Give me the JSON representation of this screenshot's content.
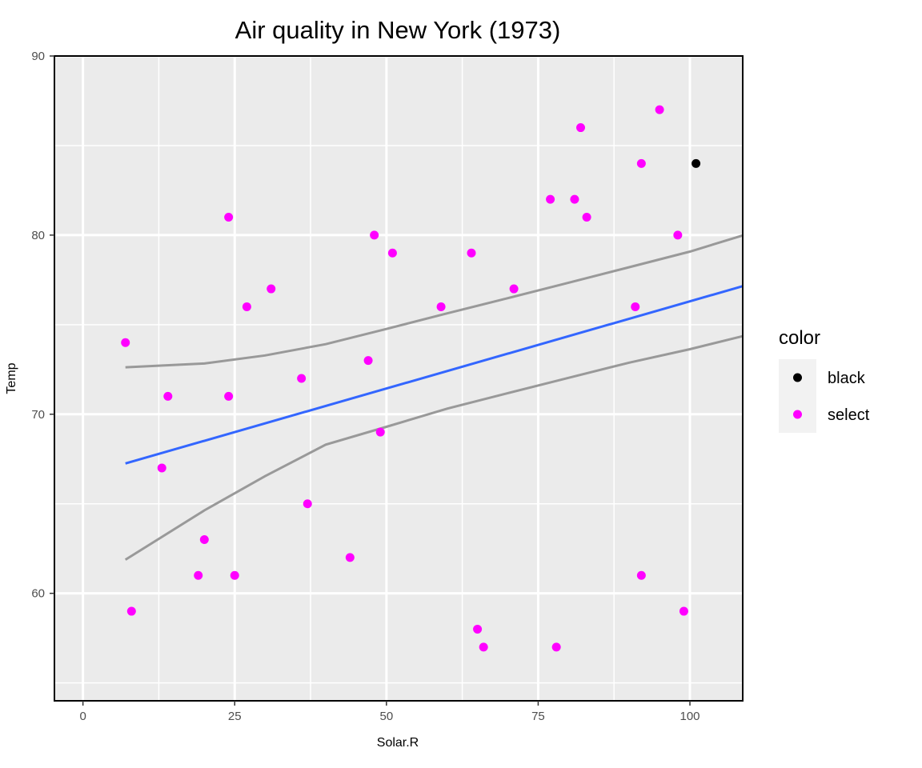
{
  "chart_data": {
    "type": "scatter",
    "title": "Air quality in New York (1973)",
    "xlabel": "Solar.R",
    "ylabel": "Temp",
    "xlim": [
      -4.7,
      108.7
    ],
    "ylim": [
      54,
      90
    ],
    "x_ticks": [
      0,
      25,
      50,
      75,
      100
    ],
    "y_ticks": [
      60,
      70,
      80,
      90
    ],
    "grid": true,
    "legend": {
      "title": "color",
      "placement": "right",
      "entries": [
        {
          "label": "black",
          "color": "#000000"
        },
        {
          "label": "select",
          "color": "#ff00ff"
        }
      ]
    },
    "series": [
      {
        "name": "black",
        "color": "#000000",
        "points": [
          [
            101,
            84
          ]
        ]
      },
      {
        "name": "select",
        "color": "#ff00ff",
        "points": [
          [
            7,
            74
          ],
          [
            8,
            59
          ],
          [
            13,
            67
          ],
          [
            14,
            71
          ],
          [
            19,
            61
          ],
          [
            20,
            63
          ],
          [
            24,
            81
          ],
          [
            24,
            71
          ],
          [
            25,
            61
          ],
          [
            27,
            76
          ],
          [
            31,
            77
          ],
          [
            36,
            72
          ],
          [
            37,
            65
          ],
          [
            44,
            62
          ],
          [
            47,
            73
          ],
          [
            48,
            80
          ],
          [
            49,
            69
          ],
          [
            51,
            79
          ],
          [
            59,
            76
          ],
          [
            64,
            79
          ],
          [
            65,
            58
          ],
          [
            66,
            57
          ],
          [
            71,
            77
          ],
          [
            77,
            82
          ],
          [
            78,
            57
          ],
          [
            81,
            82
          ],
          [
            82,
            86
          ],
          [
            83,
            81
          ],
          [
            91,
            76
          ],
          [
            92,
            84
          ],
          [
            92,
            61
          ],
          [
            95,
            87
          ],
          [
            98,
            80
          ],
          [
            99,
            59
          ]
        ]
      }
    ],
    "trend_line": {
      "color": "#3366ff",
      "x": [
        7,
        108.7
      ],
      "y": [
        67.25,
        77.15
      ]
    },
    "confidence_band": {
      "color": "#999999",
      "upper": [
        [
          7,
          72.62
        ],
        [
          20,
          72.83
        ],
        [
          30,
          73.28
        ],
        [
          40,
          73.91
        ],
        [
          50,
          74.76
        ],
        [
          60,
          75.63
        ],
        [
          70,
          76.48
        ],
        [
          80,
          77.34
        ],
        [
          90,
          78.21
        ],
        [
          100,
          79.08
        ],
        [
          108.7,
          79.98
        ]
      ],
      "lower": [
        [
          7,
          61.88
        ],
        [
          20,
          64.63
        ],
        [
          30,
          66.54
        ],
        [
          40,
          68.3
        ],
        [
          50,
          69.3
        ],
        [
          60,
          70.31
        ],
        [
          70,
          71.18
        ],
        [
          80,
          72.03
        ],
        [
          90,
          72.88
        ],
        [
          100,
          73.63
        ],
        [
          108.7,
          74.36
        ]
      ]
    },
    "colors": {
      "panel_background": "#ebebeb",
      "grid": "#ffffff"
    }
  }
}
